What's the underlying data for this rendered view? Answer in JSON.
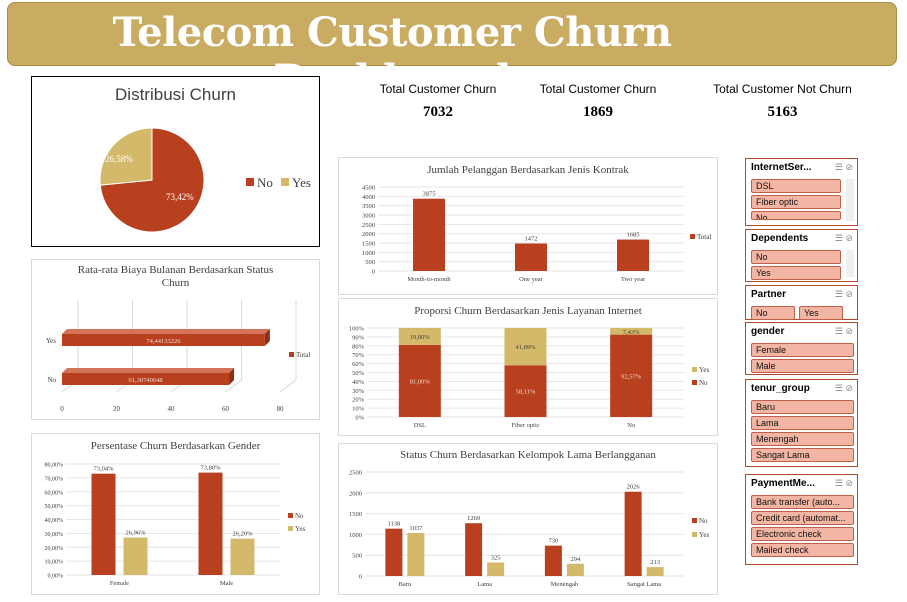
{
  "header": {
    "title": "Telecom Customer Churn Dashboard"
  },
  "kpis": [
    {
      "label": "Total Customer Churn",
      "value": "7032"
    },
    {
      "label": "Total Customer Churn",
      "value": "1869"
    },
    {
      "label": "Total Customer Not Churn",
      "value": "5163"
    }
  ],
  "colors": {
    "no": "#b8401e",
    "yes": "#d4b96a",
    "banner": "#c9ac62"
  },
  "charts": {
    "pie": {
      "title": "Distribusi Churn",
      "legend_no": "No",
      "legend_yes": "Yes",
      "label_no": "73,42%",
      "label_yes": "26,58%"
    },
    "contract": {
      "title": "Jumlah Pelanggan Berdasarkan Jenis Kontrak",
      "legend": "Total"
    },
    "monthly": {
      "title_line1": "Rata-rata Biaya Bulanan Berdasarkan Status",
      "title_line2": "Churn",
      "legend": "Total"
    },
    "internet": {
      "title": "Proporsi Churn Berdasarkan Jenis Layanan Internet",
      "legend_yes": "Yes",
      "legend_no": "No"
    },
    "gender": {
      "title": "Persentase Churn Berdasarkan Gender",
      "legend_no": "No",
      "legend_yes": "Yes"
    },
    "tenure": {
      "title": "Status Churn Berdasarkan Kelompok Lama Berlangganan",
      "legend_no": "No",
      "legend_yes": "Yes"
    }
  },
  "chart_data": [
    {
      "type": "pie",
      "title": "Distribusi Churn",
      "categories": [
        "No",
        "Yes"
      ],
      "values": [
        73.42,
        26.58
      ],
      "labels": [
        "73,42%",
        "26,58%"
      ]
    },
    {
      "type": "bar",
      "title": "Jumlah Pelanggan Berdasarkan Jenis Kontrak",
      "categories": [
        "Month-to-month",
        "One year",
        "Two year"
      ],
      "series": [
        {
          "name": "Total",
          "values": [
            3875,
            1472,
            1685
          ]
        }
      ],
      "yticks": [
        "0",
        "500",
        "1000",
        "1500",
        "2000",
        "2500",
        "3000",
        "3500",
        "4000",
        "4500"
      ],
      "ylim": [
        0,
        4500
      ]
    },
    {
      "type": "bar",
      "orientation": "horizontal",
      "title": "Rata-rata Biaya Bulanan Berdasarkan Status Churn",
      "categories": [
        "Yes",
        "No"
      ],
      "series": [
        {
          "name": "Total",
          "values": [
            74.44133226,
            61.30740648
          ]
        }
      ],
      "labels": [
        "74,44133226",
        "61,30740648"
      ],
      "xticks": [
        "0",
        "20",
        "40",
        "60",
        "80"
      ],
      "xlim": [
        0,
        80
      ]
    },
    {
      "type": "bar",
      "stacked": true,
      "title": "Proporsi Churn Berdasarkan Jenis Layanan Internet",
      "categories": [
        "DSL",
        "Fiber optic",
        "No"
      ],
      "series": [
        {
          "name": "No",
          "values": [
            81.0,
            58.11,
            92.57
          ],
          "labels": [
            "81,00%",
            "58,11%",
            "92,57%"
          ]
        },
        {
          "name": "Yes",
          "values": [
            19.0,
            41.89,
            7.43
          ],
          "labels": [
            "19,00%",
            "41,89%",
            "7,43%"
          ]
        }
      ],
      "yticks": [
        "0%",
        "10%",
        "20%",
        "30%",
        "40%",
        "50%",
        "60%",
        "70%",
        "80%",
        "90%",
        "100%"
      ],
      "ylim": [
        0,
        100
      ]
    },
    {
      "type": "bar",
      "title": "Persentase Churn Berdasarkan Gender",
      "categories": [
        "Female",
        "Male"
      ],
      "series": [
        {
          "name": "No",
          "values": [
            73.04,
            73.8
          ],
          "labels": [
            "73,04%",
            "73,80%"
          ]
        },
        {
          "name": "Yes",
          "values": [
            26.96,
            26.2
          ],
          "labels": [
            "26,96%",
            "26,20%"
          ]
        }
      ],
      "yticks": [
        "0,00%",
        "10,00%",
        "20,00%",
        "30,00%",
        "40,00%",
        "50,00%",
        "60,00%",
        "70,00%",
        "80,00%"
      ],
      "ylim": [
        0,
        80
      ]
    },
    {
      "type": "bar",
      "title": "Status Churn Berdasarkan Kelompok Lama Berlangganan",
      "categories": [
        "Baru",
        "Lama",
        "Menengah",
        "Sangat Lama"
      ],
      "series": [
        {
          "name": "No",
          "values": [
            1138,
            1269,
            730,
            2026
          ]
        },
        {
          "name": "Yes",
          "values": [
            1037,
            325,
            294,
            213
          ]
        }
      ],
      "yticks": [
        "0",
        "500",
        "1000",
        "1500",
        "2000",
        "2500"
      ],
      "ylim": [
        0,
        2500
      ]
    }
  ],
  "slicers": [
    {
      "title": "InternetSer...",
      "items": [
        "DSL",
        "Fiber optic",
        "No"
      ]
    },
    {
      "title": "Dependents",
      "items": [
        "No",
        "Yes"
      ]
    },
    {
      "title": "Partner",
      "items": [
        "No",
        "Yes"
      ]
    },
    {
      "title": "gender",
      "items": [
        "Female",
        "Male"
      ]
    },
    {
      "title": "tenur_group",
      "items": [
        "Baru",
        "Lama",
        "Menengah",
        "Sangat Lama"
      ]
    },
    {
      "title": "PaymentMe...",
      "items": [
        "Bank transfer (auto...",
        "Credit card (automat...",
        "Electronic check",
        "Mailed check"
      ]
    }
  ]
}
